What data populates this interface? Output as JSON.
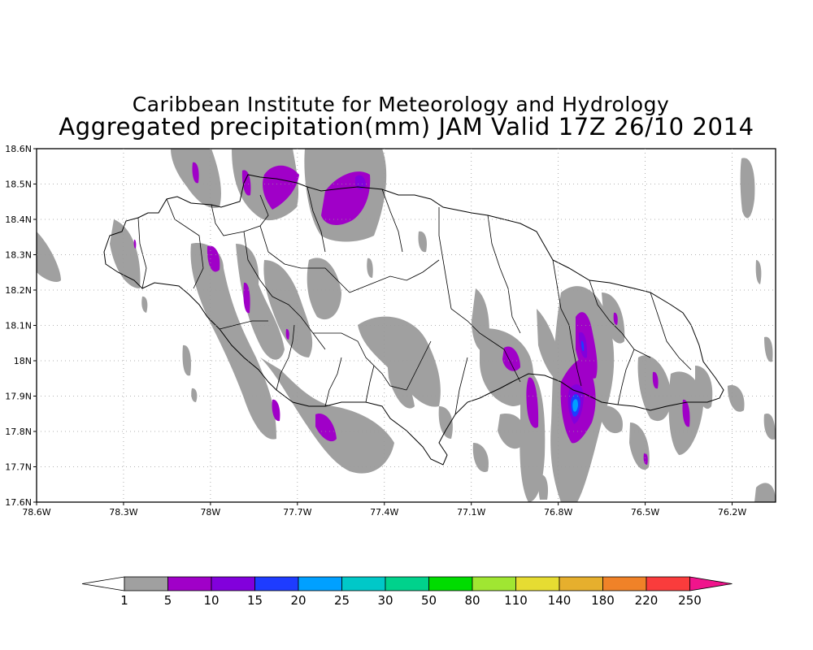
{
  "titles": {
    "line1": "Caribbean Institute for Meteorology and Hydrology",
    "line2": "Aggregated precipitation(mm) JAM Valid 17Z 26/10 2014"
  },
  "axes": {
    "lat_labels": [
      "18.6N",
      "18.5N",
      "18.4N",
      "18.3N",
      "18.2N",
      "18.1N",
      "18N",
      "17.9N",
      "17.8N",
      "17.7N",
      "17.6N"
    ],
    "lat_values": [
      18.6,
      18.5,
      18.4,
      18.3,
      18.2,
      18.1,
      18.0,
      17.9,
      17.8,
      17.7,
      17.6
    ],
    "lon_labels": [
      "78.6W",
      "78.3W",
      "78W",
      "77.7W",
      "77.4W",
      "77.1W",
      "76.8W",
      "76.5W",
      "76.2W"
    ],
    "lon_values": [
      -78.6,
      -78.3,
      -78.0,
      -77.7,
      -77.4,
      -77.1,
      -76.8,
      -76.5,
      -76.2
    ],
    "lon_range": [
      -78.6,
      -76.05
    ],
    "lat_range": [
      17.6,
      18.6
    ],
    "grid": true
  },
  "colorbar": {
    "labels": [
      "1",
      "5",
      "10",
      "15",
      "20",
      "25",
      "30",
      "50",
      "80",
      "110",
      "140",
      "180",
      "220",
      "250"
    ],
    "colors": [
      "#a0a0a0",
      "#a000c8",
      "#8200dc",
      "#1e3cff",
      "#00a0ff",
      "#00c8c8",
      "#00d28c",
      "#00dc00",
      "#a0e632",
      "#e6dc32",
      "#e6af2d",
      "#f08228",
      "#fa3c3c"
    ],
    "under_color": "#ffffff",
    "over_color": "#f0148c"
  },
  "palette": {
    "none": "#ffffff",
    "light": "#a0a0a0",
    "moderate": "#a000c8",
    "heavy": "#8200dc",
    "max": "#00a0ff"
  }
}
